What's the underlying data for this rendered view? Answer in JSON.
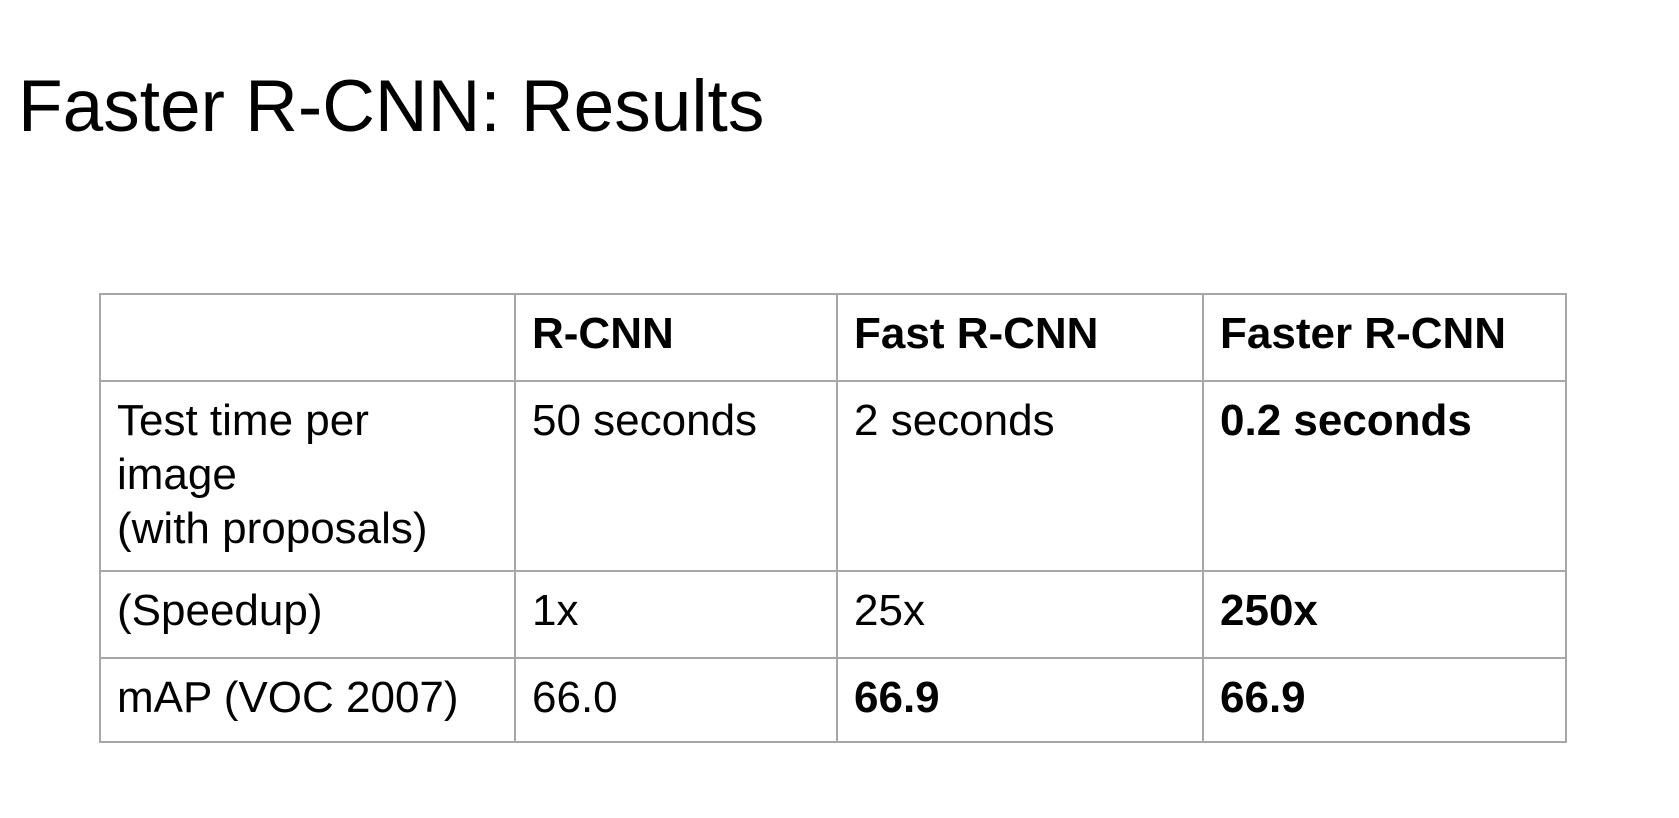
{
  "title": "Faster R-CNN: Results",
  "table": {
    "headers": [
      "",
      "R-CNN",
      "Fast R-CNN",
      "Faster R-CNN"
    ],
    "rows": [
      {
        "label": "Test time per image\n(with proposals)",
        "cells": [
          "50 seconds",
          "2 seconds",
          "0.2 seconds"
        ]
      },
      {
        "label": "(Speedup)",
        "cells": [
          "1x",
          "25x",
          "250x"
        ]
      },
      {
        "label": "mAP (VOC 2007)",
        "cells": [
          "66.0",
          "66.9",
          "66.9"
        ]
      }
    ]
  },
  "chart_data": {
    "type": "table",
    "title": "Faster R-CNN: Results",
    "columns": [
      "",
      "R-CNN",
      "Fast R-CNN",
      "Faster R-CNN"
    ],
    "rows": [
      [
        "Test time per image (with proposals)",
        "50 seconds",
        "2 seconds",
        "0.2 seconds"
      ],
      [
        "(Speedup)",
        "1x",
        "25x",
        "250x"
      ],
      [
        "mAP (VOC 2007)",
        "66.0",
        "66.9",
        "66.9"
      ]
    ],
    "emphasis_note": "Faster R-CNN column values bold; Fast R-CNN mAP bold"
  },
  "colors": {
    "background": "#ffffff",
    "text": "#000000",
    "table_border": "#a7a7a7"
  }
}
